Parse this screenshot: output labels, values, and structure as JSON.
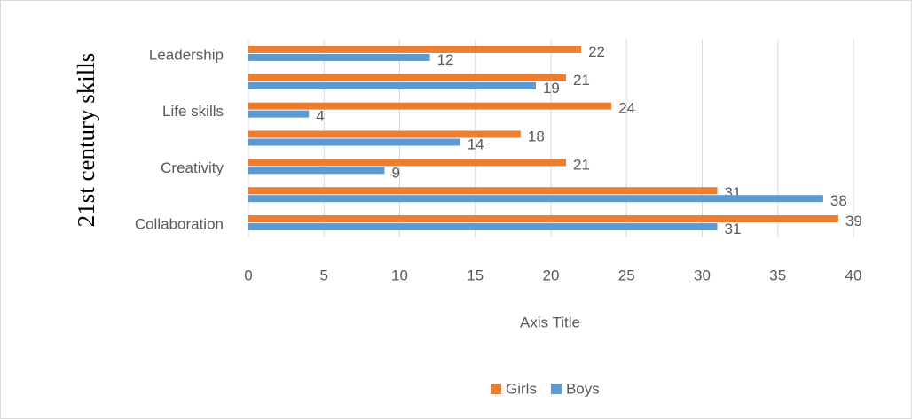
{
  "chart_data": {
    "type": "hbar",
    "xlabel": "Axis Title",
    "ylabel": "21st century skills",
    "categories": [
      "Collaboration",
      null,
      "Creativity",
      null,
      "Life skills",
      null,
      "Leadership"
    ],
    "series": [
      {
        "name": "Girls",
        "color": "#ed7d31",
        "values": [
          39,
          31,
          21,
          18,
          24,
          21,
          22
        ]
      },
      {
        "name": "Boys",
        "color": "#5b9bd5",
        "values": [
          31,
          38,
          9,
          14,
          4,
          19,
          12
        ]
      }
    ],
    "xlim": [
      0,
      40
    ],
    "xticks": [
      0,
      5,
      10,
      15,
      20,
      25,
      30,
      35,
      40
    ],
    "grid": true,
    "legend": "bottom"
  }
}
